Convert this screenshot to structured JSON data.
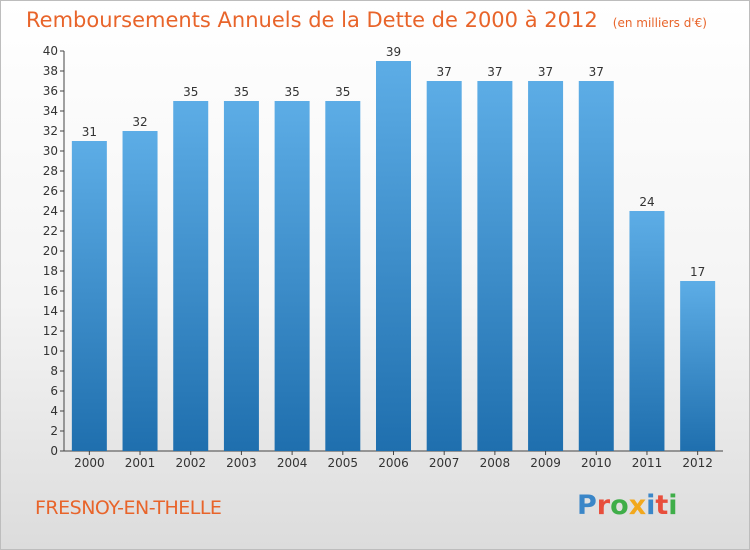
{
  "header": {
    "title": "Remboursements Annuels de la Dette de 2000 à 2012",
    "unit": "(en milliers d'€)"
  },
  "footer": {
    "commune": "FRESNOY-EN-THELLE",
    "logo_text": "Proxiti",
    "logo_letters": [
      {
        "char": "P",
        "color": "#3a86c8"
      },
      {
        "char": "r",
        "color": "#e84e3c"
      },
      {
        "char": "o",
        "color": "#3fae49"
      },
      {
        "char": "x",
        "color": "#f2a81d"
      },
      {
        "char": "i",
        "color": "#3a86c8"
      },
      {
        "char": "t",
        "color": "#e84e3c"
      },
      {
        "char": "i",
        "color": "#3fae49"
      }
    ]
  },
  "chart_data": {
    "type": "bar",
    "title": "Remboursements Annuels de la Dette de 2000 à 2012",
    "subtitle": "(en milliers d'€)",
    "xlabel": "",
    "ylabel": "",
    "categories": [
      "2000",
      "2001",
      "2002",
      "2003",
      "2004",
      "2005",
      "2006",
      "2007",
      "2008",
      "2009",
      "2010",
      "2011",
      "2012"
    ],
    "values": [
      31,
      32,
      35,
      35,
      35,
      35,
      39,
      37,
      37,
      37,
      37,
      24,
      17
    ],
    "data_labels": [
      "31",
      "32",
      "35",
      "35",
      "35",
      "35",
      "39",
      "37",
      "37",
      "37",
      "37",
      "24",
      "17"
    ],
    "ylim": [
      0,
      40
    ],
    "ytick_step": 2,
    "yticks": [
      "0",
      "2",
      "4",
      "6",
      "8",
      "10",
      "12",
      "14",
      "16",
      "18",
      "20",
      "22",
      "24",
      "26",
      "28",
      "30",
      "32",
      "34",
      "36",
      "38",
      "40"
    ],
    "grid": false,
    "legend": "none",
    "colors": {
      "bar_top": "#5dade6",
      "bar_bottom": "#1f6fae",
      "title": "#e8642a",
      "axis": "#444444",
      "text": "#333333"
    }
  }
}
